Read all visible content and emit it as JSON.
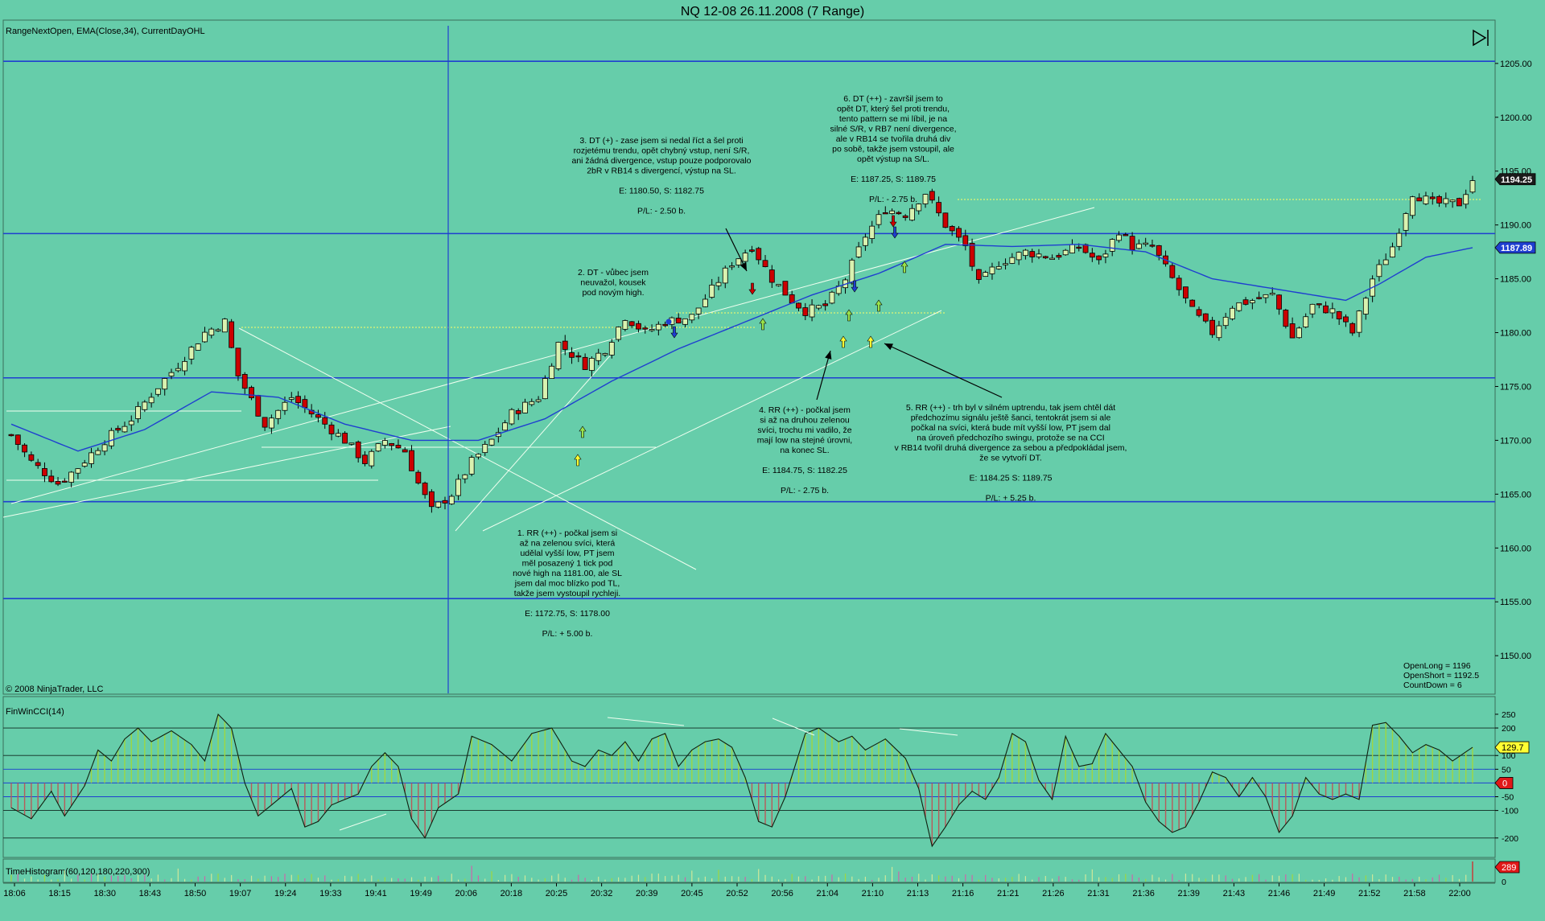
{
  "window": {
    "title": "NQ 12-08  26.11.2008 (7 Range)"
  },
  "price_panel": {
    "indicator_label": "RangeNextOpen, EMA(Close,34), CurrentDayOHL",
    "copyright": "© 2008 NinjaTrader, LLC",
    "stats": [
      "OpenLong = 1196",
      "OpenShort = 1192.5",
      "CountDown = 6"
    ],
    "last_price_tag": "1194.25",
    "ema_tag": "1187.89"
  },
  "cci_panel": {
    "label": "FinWinCCI(14)",
    "value_tag": "129.7",
    "zero_tag": "0"
  },
  "hist_panel": {
    "label": "TimeHistogram(60,120,180,220,300)",
    "value_tag": "289",
    "zero_label": "0"
  },
  "annotations": [
    {
      "lines": [
        "1. RR (++) - počkal jsem si",
        "až na zelenou svíci, která",
        "udělal vyšší low, PT jsem",
        "měl posazený 1 tick pod",
        "nové high na 1181.00, ale SL",
        "jsem dal moc blízko pod TL,",
        "takže jsem vystoupil rychleji.",
        "",
        "E: 1172.75, S: 1178.00",
        "",
        "P/L: + 5.00 b."
      ]
    },
    {
      "lines": [
        "2. DT - vůbec jsem",
        "neuvažol, kousek",
        "pod novým high."
      ]
    },
    {
      "lines": [
        "3. DT (+) - zase jsem si nedal říct a šel proti",
        "rozjetému trendu, opět chybný vstup, není S/R,",
        "ani žádná divergence, vstup pouze podporovalo",
        "2bR v RB14 s divergencí, výstup na SL.",
        "",
        "E: 1180.50, S: 1182.75",
        "",
        "P/L: - 2.50 b."
      ]
    },
    {
      "lines": [
        "4. RR (++) - počkal jsem",
        "si až na druhou zelenou",
        "svíci, trochu mi vadilo, že",
        "mají low na stejné úrovni,",
        "na konec SL.",
        "",
        "E: 1184.75, S: 1182.25",
        "",
        "P/L: - 2.75 b."
      ]
    },
    {
      "lines": [
        "5. RR (++) - trh byl v silném uptrendu, tak jsem chtěl dát",
        "předchozímu signálu ještě šanci, tentokrát jsem si ale",
        "počkal na svíci, která bude mít vyšší low, PT jsem dal",
        "na úroveň předchozího swingu, protože se na CCI",
        "v RB14 tvořil druhá divergence za sebou a předpokládal jsem,",
        "že se vytvoří DT.",
        "",
        "E: 1184.25 S: 1189.75",
        "",
        "P/L: + 5.25 b."
      ]
    },
    {
      "lines": [
        "6. DT (++) - završil jsem to",
        "opět DT, který šel proti trendu,",
        "tento pattern se mi líbil, je na",
        "silné S/R, v RB7 není divergence,",
        "ale v RB14 se tvořila druhá div",
        "po sobě, takže jsem vstoupil, ale",
        "opět výstup na S/L.",
        "",
        "E: 1187.25, S: 1189.75",
        "",
        "P/L: - 2.75 b."
      ]
    }
  ],
  "chart_data": [
    {
      "type": "candlestick",
      "title": "NQ 12-08  26.11.2008 (7 Range)",
      "x_ticks": [
        "18:06",
        "18:15",
        "18:30",
        "18:43",
        "18:50",
        "19:07",
        "19:24",
        "19:33",
        "19:41",
        "19:49",
        "20:06",
        "20:18",
        "20:25",
        "20:32",
        "20:39",
        "20:45",
        "20:52",
        "20:56",
        "21:04",
        "21:10",
        "21:13",
        "21:16",
        "21:21",
        "21:26",
        "21:31",
        "21:36",
        "21:39",
        "21:43",
        "21:46",
        "21:49",
        "21:52",
        "21:58",
        "22:00"
      ],
      "y_ticks": [
        1150,
        1155,
        1160,
        1165,
        1170,
        1175,
        1180,
        1185,
        1190,
        1195,
        1200,
        1205
      ],
      "ylim": [
        1146.5,
        1208.5
      ],
      "close_path": [
        [
          0,
          1170.5
        ],
        [
          3,
          1168
        ],
        [
          7,
          1166
        ],
        [
          10,
          1167.5
        ],
        [
          14,
          1170
        ],
        [
          18,
          1172
        ],
        [
          22,
          1175
        ],
        [
          25,
          1177
        ],
        [
          29,
          1180
        ],
        [
          32,
          1181
        ],
        [
          34,
          1176
        ],
        [
          38,
          1171.5
        ],
        [
          42,
          1174
        ],
        [
          46,
          1172
        ],
        [
          50,
          1170
        ],
        [
          53,
          1168
        ],
        [
          56,
          1170
        ],
        [
          59,
          1169
        ],
        [
          61,
          1166
        ],
        [
          63,
          1163.5
        ],
        [
          66,
          1165
        ],
        [
          69,
          1168
        ],
        [
          72,
          1170
        ],
        [
          75,
          1172.5
        ],
        [
          79,
          1174
        ],
        [
          82,
          1179
        ],
        [
          86,
          1177
        ],
        [
          89,
          1178.5
        ],
        [
          92,
          1181.5
        ],
        [
          95,
          1180
        ],
        [
          98,
          1181
        ],
        [
          102,
          1181.5
        ],
        [
          105,
          1184
        ],
        [
          108,
          1186.5
        ],
        [
          111,
          1188
        ],
        [
          114,
          1185
        ],
        [
          117,
          1183
        ],
        [
          119,
          1182
        ],
        [
          122,
          1182.5
        ],
        [
          125,
          1185
        ],
        [
          128,
          1189
        ],
        [
          131,
          1191.5
        ],
        [
          134,
          1191
        ],
        [
          137,
          1193
        ],
        [
          140,
          1190
        ],
        [
          143,
          1188
        ],
        [
          145,
          1184.5
        ],
        [
          148,
          1186.5
        ],
        [
          152,
          1187.5
        ],
        [
          156,
          1187
        ],
        [
          160,
          1188
        ],
        [
          163,
          1186.5
        ],
        [
          166,
          1189.5
        ],
        [
          168,
          1188
        ],
        [
          171,
          1188
        ],
        [
          174,
          1185
        ],
        [
          177,
          1182
        ],
        [
          180,
          1180
        ],
        [
          183,
          1182.5
        ],
        [
          186,
          1183
        ],
        [
          189,
          1183.5
        ],
        [
          192,
          1179.5
        ],
        [
          195,
          1182.5
        ],
        [
          198,
          1182
        ],
        [
          201,
          1180
        ],
        [
          204,
          1185
        ],
        [
          207,
          1188
        ],
        [
          210,
          1193
        ],
        [
          213,
          1192
        ],
        [
          217,
          1192
        ],
        [
          219,
          1194.25
        ]
      ],
      "ema_path": [
        [
          0,
          1171.5
        ],
        [
          10,
          1169
        ],
        [
          20,
          1171
        ],
        [
          30,
          1174.5
        ],
        [
          40,
          1174
        ],
        [
          50,
          1171.5
        ],
        [
          60,
          1170
        ],
        [
          70,
          1170
        ],
        [
          80,
          1172
        ],
        [
          90,
          1175.5
        ],
        [
          100,
          1178.5
        ],
        [
          110,
          1181
        ],
        [
          120,
          1183.5
        ],
        [
          130,
          1185.5
        ],
        [
          140,
          1188.2
        ],
        [
          150,
          1188
        ],
        [
          160,
          1188.2
        ],
        [
          170,
          1187.5
        ],
        [
          180,
          1185
        ],
        [
          190,
          1184
        ],
        [
          200,
          1183
        ],
        [
          205,
          1184.5
        ],
        [
          212,
          1187
        ],
        [
          219,
          1187.89
        ]
      ],
      "horizontal_levels": [
        1155.3,
        1164.3,
        1175.8,
        1189.2,
        1205.2
      ],
      "series": [
        {
          "name": "EMA(Close,34)",
          "color": "#1f3fd0"
        }
      ],
      "candle_colors": {
        "up": "#d9f2b0",
        "down": "#cc0000"
      },
      "grid": false
    },
    {
      "type": "area",
      "title": "FinWinCCI(14)",
      "y_ticks": [
        -200,
        -100,
        -50,
        0,
        50,
        100,
        200,
        250
      ],
      "ylim": [
        -265,
        285
      ],
      "cci_path": [
        [
          0,
          -90
        ],
        [
          3,
          -130
        ],
        [
          6,
          -30
        ],
        [
          8,
          -120
        ],
        [
          11,
          -10
        ],
        [
          13,
          120
        ],
        [
          15,
          80
        ],
        [
          17,
          160
        ],
        [
          19,
          200
        ],
        [
          21,
          150
        ],
        [
          24,
          190
        ],
        [
          27,
          140
        ],
        [
          29,
          80
        ],
        [
          31,
          250
        ],
        [
          33,
          200
        ],
        [
          35,
          0
        ],
        [
          37,
          -120
        ],
        [
          40,
          -60
        ],
        [
          42,
          -20
        ],
        [
          44,
          -160
        ],
        [
          46,
          -140
        ],
        [
          48,
          -80
        ],
        [
          52,
          -40
        ],
        [
          54,
          60
        ],
        [
          56,
          110
        ],
        [
          58,
          60
        ],
        [
          60,
          -130
        ],
        [
          62,
          -200
        ],
        [
          64,
          -90
        ],
        [
          67,
          -40
        ],
        [
          69,
          170
        ],
        [
          72,
          140
        ],
        [
          75,
          80
        ],
        [
          78,
          180
        ],
        [
          81,
          200
        ],
        [
          84,
          80
        ],
        [
          86,
          60
        ],
        [
          88,
          120
        ],
        [
          90,
          100
        ],
        [
          92,
          150
        ],
        [
          94,
          80
        ],
        [
          96,
          160
        ],
        [
          98,
          180
        ],
        [
          100,
          60
        ],
        [
          102,
          120
        ],
        [
          104,
          150
        ],
        [
          106,
          160
        ],
        [
          108,
          130
        ],
        [
          110,
          20
        ],
        [
          112,
          -140
        ],
        [
          114,
          -160
        ],
        [
          116,
          -50
        ],
        [
          119,
          180
        ],
        [
          121,
          200
        ],
        [
          124,
          150
        ],
        [
          126,
          170
        ],
        [
          128,
          120
        ],
        [
          131,
          160
        ],
        [
          134,
          90
        ],
        [
          136,
          -20
        ],
        [
          138,
          -230
        ],
        [
          140,
          -160
        ],
        [
          142,
          -80
        ],
        [
          144,
          -30
        ],
        [
          146,
          -60
        ],
        [
          148,
          20
        ],
        [
          150,
          180
        ],
        [
          152,
          150
        ],
        [
          154,
          10
        ],
        [
          156,
          -60
        ],
        [
          158,
          170
        ],
        [
          160,
          60
        ],
        [
          162,
          70
        ],
        [
          164,
          180
        ],
        [
          166,
          120
        ],
        [
          168,
          60
        ],
        [
          170,
          -70
        ],
        [
          172,
          -140
        ],
        [
          174,
          -180
        ],
        [
          176,
          -160
        ],
        [
          178,
          -70
        ],
        [
          180,
          40
        ],
        [
          182,
          20
        ],
        [
          184,
          -50
        ],
        [
          186,
          20
        ],
        [
          188,
          -50
        ],
        [
          190,
          -180
        ],
        [
          192,
          -120
        ],
        [
          194,
          20
        ],
        [
          196,
          -40
        ],
        [
          198,
          -60
        ],
        [
          200,
          -40
        ],
        [
          202,
          -60
        ],
        [
          204,
          210
        ],
        [
          206,
          220
        ],
        [
          208,
          170
        ],
        [
          210,
          110
        ],
        [
          212,
          140
        ],
        [
          214,
          120
        ],
        [
          216,
          80
        ],
        [
          219,
          129.7
        ]
      ],
      "levels": [
        -200,
        -100,
        -50,
        0,
        50,
        100,
        200
      ],
      "colors": {
        "positive": "#9fd640",
        "negative": "#b85a5a",
        "line": "#102010"
      }
    },
    {
      "type": "bar",
      "title": "TimeHistogram(60,120,180,220,300)",
      "y_ticks": [
        0
      ],
      "ylim": [
        0,
        300
      ],
      "last_value": 289
    }
  ]
}
